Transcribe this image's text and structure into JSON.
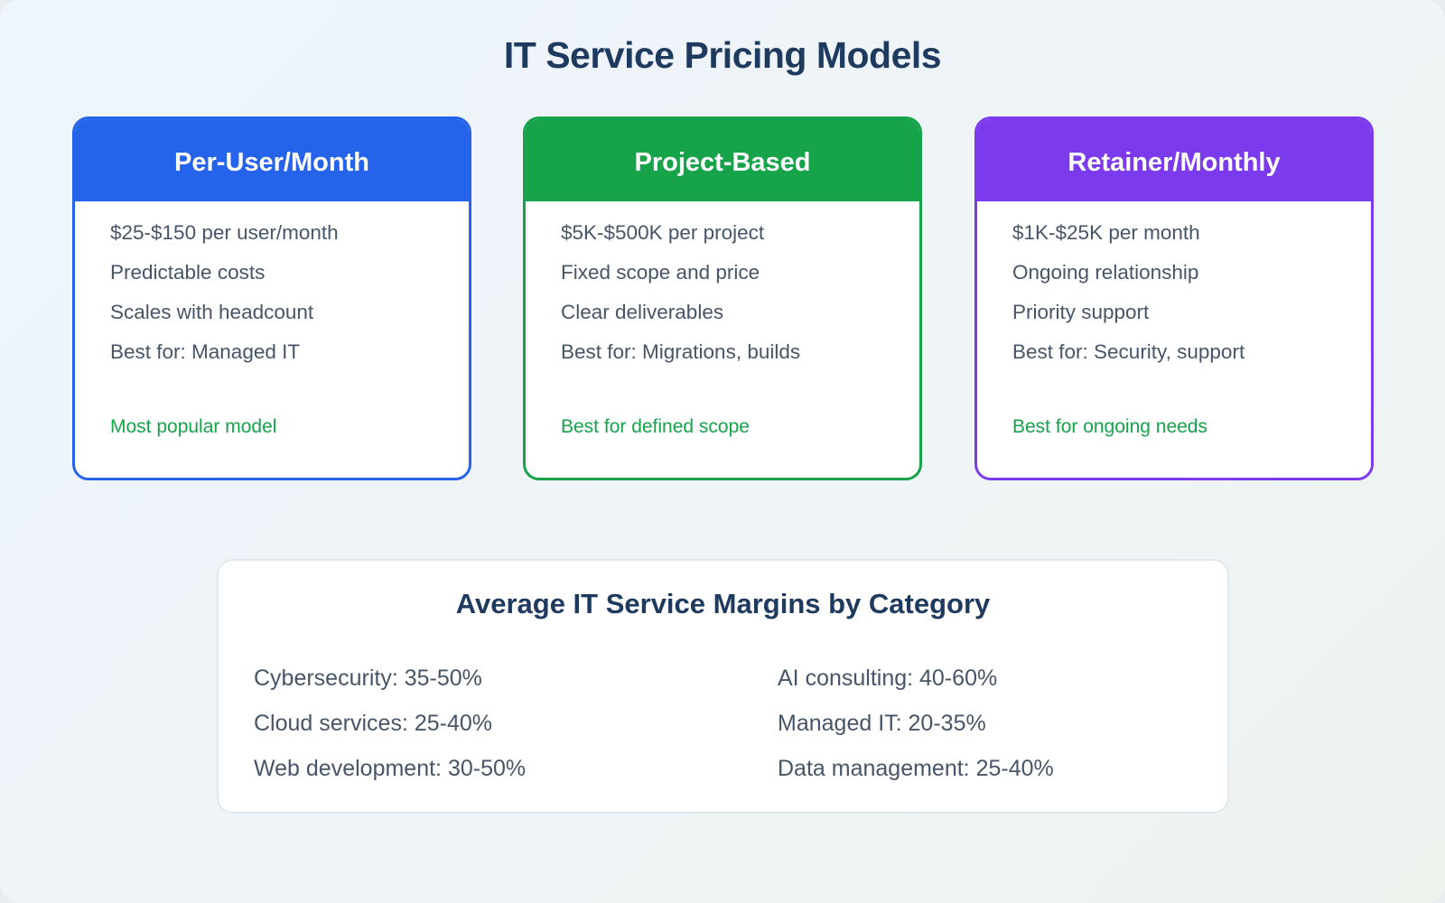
{
  "title": "IT Service Pricing Models",
  "colors": {
    "blue": "#2563eb",
    "green": "#16a34a",
    "purple": "#7c3aed",
    "note": "#16a34a"
  },
  "cards": [
    {
      "heading": "Per-User/Month",
      "items": [
        "$25-$150 per user/month",
        "Predictable costs",
        "Scales with headcount",
        "Best for: Managed IT"
      ],
      "note": "Most popular model"
    },
    {
      "heading": "Project-Based",
      "items": [
        "$5K-$500K per project",
        "Fixed scope and price",
        "Clear deliverables",
        "Best for: Migrations, builds"
      ],
      "note": "Best for defined scope"
    },
    {
      "heading": "Retainer/Monthly",
      "items": [
        "$1K-$25K per month",
        "Ongoing relationship",
        "Priority support",
        "Best for: Security, support"
      ],
      "note": "Best for ongoing needs"
    }
  ],
  "margins": {
    "title": "Average IT Service Margins by Category",
    "left": [
      "Cybersecurity: 35-50%",
      "Cloud services: 25-40%",
      "Web development: 30-50%"
    ],
    "right": [
      "AI consulting: 40-60%",
      "Managed IT: 20-35%",
      "Data management: 25-40%"
    ]
  }
}
